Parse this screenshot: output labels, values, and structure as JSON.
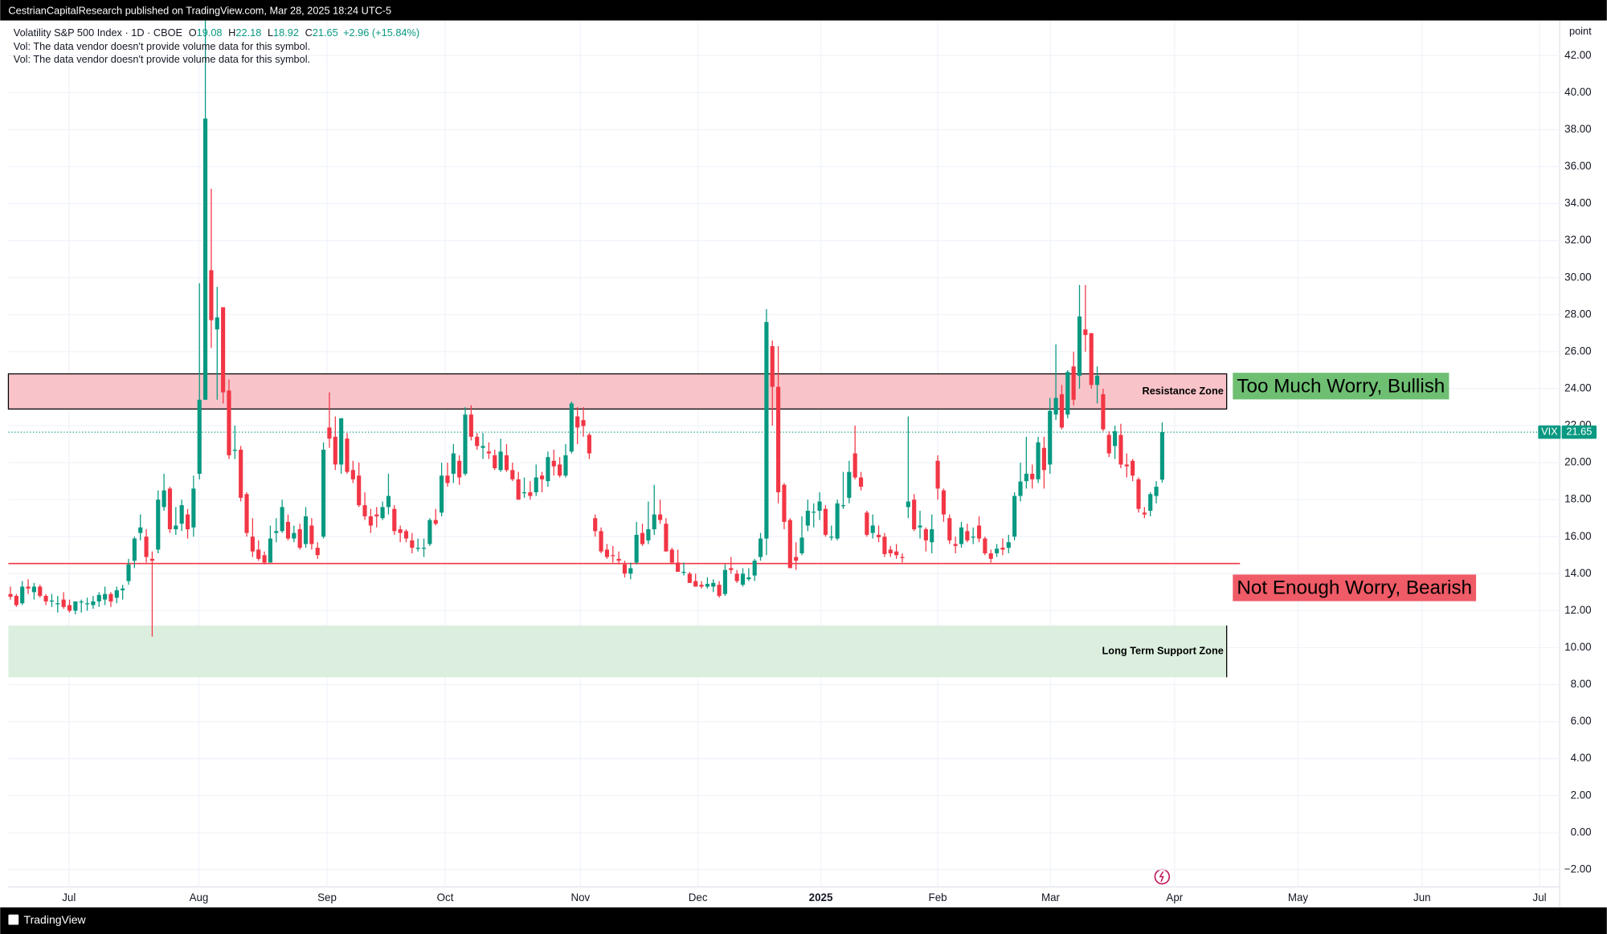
{
  "header": {
    "published": "CestrianCapitalResearch published on TradingView.com, Mar 28, 2025 18:24 UTC-5",
    "symbol": "Volatility S&P 500 Index · 1D · CBOE",
    "ohlc_labels": [
      "O",
      "H",
      "L",
      "C"
    ],
    "ohlc_values": [
      "19.08",
      "22.18",
      "18.92",
      "21.65"
    ],
    "change": "+2.96 (+15.84%)",
    "notes": [
      "Vol: The data vendor doesn't provide volume data for this symbol.",
      "Vol: The data vendor doesn't provide volume data for this symbol."
    ]
  },
  "footer": {
    "brand": "TradingView"
  },
  "chart_data": {
    "type": "candlestick",
    "y_unit": "point",
    "up_color": "#089981",
    "down_color": "#f23645",
    "grid": true,
    "ylim": [
      -2.93,
      43.9
    ],
    "yticks": [
      {
        "value": -2,
        "label": "−2.00"
      },
      {
        "value": 0,
        "label": "0.00"
      },
      {
        "value": 2,
        "label": "2.00"
      },
      {
        "value": 4,
        "label": "4.00"
      },
      {
        "value": 6,
        "label": "6.00"
      },
      {
        "value": 8,
        "label": "8.00"
      },
      {
        "value": 10,
        "label": "10.00"
      },
      {
        "value": 12,
        "label": "12.00"
      },
      {
        "value": 14,
        "label": "14.00"
      },
      {
        "value": 16,
        "label": "16.00"
      },
      {
        "value": 18,
        "label": "18.00"
      },
      {
        "value": 20,
        "label": "20.00"
      },
      {
        "value": 22,
        "label": "22.00"
      },
      {
        "value": 24,
        "label": "24.00"
      },
      {
        "value": 26,
        "label": "26.00"
      },
      {
        "value": 28,
        "label": "28.00"
      },
      {
        "value": 30,
        "label": "30.00"
      },
      {
        "value": 32,
        "label": "32.00"
      },
      {
        "value": 34,
        "label": "34.00"
      },
      {
        "value": 36,
        "label": "36.00"
      },
      {
        "value": 38,
        "label": "38.00"
      },
      {
        "value": 40,
        "label": "40.00"
      },
      {
        "value": 42,
        "label": "42.00"
      }
    ],
    "xlim": [
      -0.35,
      262.3
    ],
    "xticks": [
      {
        "value": 9.9,
        "label": "Jul"
      },
      {
        "value": 31.9,
        "label": "Aug"
      },
      {
        "value": 53.6,
        "label": "Sep"
      },
      {
        "value": 73.6,
        "label": "Oct"
      },
      {
        "value": 96.5,
        "label": "Nov"
      },
      {
        "value": 116.4,
        "label": "Dec"
      },
      {
        "value": 137.2,
        "label": "2025"
      },
      {
        "value": 157,
        "label": "Feb"
      },
      {
        "value": 176.1,
        "label": "Mar"
      },
      {
        "value": 197.1,
        "label": "Apr"
      },
      {
        "value": 218,
        "label": "May"
      },
      {
        "value": 239,
        "label": "Jun"
      },
      {
        "value": 258.9,
        "label": "Jul"
      }
    ],
    "candles": [
      [
        12.9,
        13.3,
        12.6,
        12.75
      ],
      [
        12.8,
        12.9,
        12.2,
        12.3
      ],
      [
        12.4,
        13.6,
        12.3,
        13.3
      ],
      [
        13.3,
        13.7,
        12.9,
        13.2
      ],
      [
        13,
        13.5,
        12.6,
        13.3
      ],
      [
        13.3,
        13.4,
        12.7,
        12.8
      ],
      [
        12.8,
        12.9,
        12.3,
        12.5
      ],
      [
        12.5,
        12.9,
        12.2,
        12.55
      ],
      [
        12.4,
        12.8,
        11.9,
        12.4
      ],
      [
        12.6,
        13,
        12.1,
        12.2
      ],
      [
        12.3,
        12.6,
        11.9,
        12
      ],
      [
        12,
        12.5,
        11.8,
        12.5
      ],
      [
        12.5,
        12.6,
        11.9,
        12.5
      ],
      [
        12.4,
        12.7,
        12,
        12.4
      ],
      [
        12.3,
        12.8,
        12.1,
        12.5
      ],
      [
        12.5,
        13,
        12.2,
        12.85
      ],
      [
        12.6,
        13.3,
        12.3,
        12.9
      ],
      [
        12.9,
        13,
        12.2,
        12.5
      ],
      [
        12.7,
        13.3,
        12.4,
        13.1
      ],
      [
        13.1,
        13.4,
        12.6,
        13.2
      ],
      [
        13.6,
        14.8,
        13.4,
        14.5
      ],
      [
        14.7,
        16,
        14.3,
        15.9
      ],
      [
        16.2,
        17.2,
        15.8,
        16.5
      ],
      [
        16,
        16.4,
        14.6,
        14.9
      ],
      [
        14.8,
        15.2,
        10.6,
        14.7
      ],
      [
        15.3,
        18.5,
        15.1,
        18
      ],
      [
        17.6,
        19.4,
        17.4,
        18.5
      ],
      [
        18.6,
        18.7,
        16.2,
        16.4
      ],
      [
        16.4,
        17.6,
        16.1,
        16.6
      ],
      [
        16.7,
        18,
        16.3,
        17.7
      ],
      [
        17.2,
        17.5,
        15.9,
        16.4
      ],
      [
        16.5,
        19.3,
        16,
        18.6
      ],
      [
        19.4,
        29.7,
        19.1,
        23.4
      ],
      [
        23.4,
        65.7,
        23.4,
        38.6
      ],
      [
        30.4,
        34.8,
        26.2,
        27.7
      ],
      [
        27.2,
        29.5,
        23.4,
        27.85
      ],
      [
        28.4,
        28.4,
        23.2,
        23.8
      ],
      [
        23.9,
        24.5,
        20.2,
        20.4
      ],
      [
        20.7,
        22,
        20.2,
        20.7
      ],
      [
        20.7,
        20.9,
        17.9,
        18.1
      ],
      [
        18.3,
        18.4,
        16,
        16.2
      ],
      [
        16,
        17,
        14.9,
        15.2
      ],
      [
        15.3,
        15.8,
        14.7,
        14.8
      ],
      [
        15,
        15.2,
        14.5,
        14.6
      ],
      [
        14.6,
        16.6,
        14.6,
        15.9
      ],
      [
        16.2,
        17,
        15.7,
        16.3
      ],
      [
        16.3,
        18,
        16.2,
        17.6
      ],
      [
        16.8,
        17.2,
        15.8,
        15.9
      ],
      [
        15.9,
        16.6,
        15.7,
        16.2
      ],
      [
        16.4,
        16.7,
        15.3,
        15.4
      ],
      [
        15.6,
        17.6,
        15.4,
        17.1
      ],
      [
        16.6,
        17,
        15.3,
        15.6
      ],
      [
        15.4,
        15.7,
        14.8,
        15
      ],
      [
        16,
        21.1,
        15.9,
        20.7
      ],
      [
        21.9,
        23.8,
        20.8,
        21.3
      ],
      [
        21.4,
        22.5,
        19.6,
        19.9
      ],
      [
        19.9,
        22.4,
        19.4,
        22.4
      ],
      [
        21.3,
        21.6,
        19.4,
        19.5
      ],
      [
        19.6,
        20.1,
        18.9,
        19.1
      ],
      [
        19.3,
        20,
        17.6,
        17.7
      ],
      [
        17.7,
        18.4,
        16.9,
        17.1
      ],
      [
        17.1,
        17.5,
        16.2,
        16.6
      ],
      [
        17.2,
        17.6,
        16.5,
        17.1
      ],
      [
        17,
        17.9,
        16.9,
        17.6
      ],
      [
        17.6,
        19.4,
        17.2,
        18.2
      ],
      [
        17.5,
        17.7,
        16.1,
        16.3
      ],
      [
        16.4,
        16.6,
        15.7,
        16.2
      ],
      [
        16.3,
        16.4,
        15.7,
        15.9
      ],
      [
        15.8,
        16.2,
        15.1,
        15.4
      ],
      [
        15.4,
        15.9,
        15.2,
        15.4
      ],
      [
        15.4,
        15.9,
        14.9,
        15.4
      ],
      [
        15.6,
        17,
        15.5,
        16.9
      ],
      [
        16.9,
        17.5,
        16.6,
        16.7
      ],
      [
        17.3,
        20,
        17.1,
        19.3
      ],
      [
        19.3,
        20,
        18.7,
        18.9
      ],
      [
        19.4,
        21,
        18.9,
        20.5
      ],
      [
        20.1,
        20.4,
        18.8,
        19.2
      ],
      [
        19.4,
        23,
        19.3,
        22.6
      ],
      [
        22.6,
        23.1,
        21.2,
        21.4
      ],
      [
        21.4,
        21.6,
        20.7,
        20.9
      ],
      [
        20.8,
        21.6,
        20.2,
        20.9
      ],
      [
        20.6,
        21.1,
        20.2,
        20.5
      ],
      [
        20.4,
        20.7,
        19.6,
        19.7
      ],
      [
        19.6,
        21.3,
        19.5,
        20.6
      ],
      [
        20.4,
        21,
        19.5,
        19.6
      ],
      [
        19.6,
        20,
        19,
        19.1
      ],
      [
        19.1,
        19.5,
        18,
        18
      ],
      [
        18.4,
        19.2,
        18.1,
        18.4
      ],
      [
        18.4,
        19,
        18,
        18.2
      ],
      [
        18.4,
        19.9,
        18.2,
        19.2
      ],
      [
        19.3,
        19.5,
        18.4,
        19.1
      ],
      [
        19,
        20.6,
        18.7,
        20.3
      ],
      [
        20.1,
        20.7,
        19.3,
        19.8
      ],
      [
        19.9,
        20.3,
        19.2,
        19.3
      ],
      [
        19.3,
        21,
        19.2,
        20.4
      ],
      [
        20.6,
        23.3,
        20.5,
        23.2
      ],
      [
        22.5,
        23,
        21,
        21.9
      ],
      [
        22.3,
        23,
        21.4,
        21.98
      ],
      [
        21.5,
        21.6,
        20.2,
        20.5
      ],
      [
        17,
        17.2,
        16,
        16.3
      ],
      [
        16.3,
        16.5,
        15.1,
        15.2
      ],
      [
        15.3,
        15.6,
        14.8,
        14.9
      ],
      [
        15,
        15.5,
        14.6,
        14.97
      ],
      [
        14.8,
        15.2,
        14.5,
        14.7
      ],
      [
        14.5,
        14.7,
        13.8,
        14
      ],
      [
        14,
        14.6,
        13.7,
        14.3
      ],
      [
        14.6,
        16.8,
        14.5,
        16.1
      ],
      [
        16.2,
        16.7,
        15.5,
        15.6
      ],
      [
        15.8,
        17.9,
        15.6,
        16.4
      ],
      [
        16.4,
        18.8,
        16.1,
        17.2
      ],
      [
        17.2,
        18,
        16.7,
        16.9
      ],
      [
        16.7,
        17,
        15.2,
        15.2
      ],
      [
        15.3,
        15.4,
        14.5,
        14.6
      ],
      [
        14.6,
        15.3,
        14.1,
        14.1
      ],
      [
        14.1,
        14.6,
        13.9,
        14.1
      ],
      [
        14,
        14.1,
        13.5,
        13.5
      ],
      [
        13.6,
        14,
        13.3,
        13.3
      ],
      [
        13.4,
        13.6,
        13.2,
        13.3
      ],
      [
        13.3,
        13.8,
        13.2,
        13.45
      ],
      [
        13.3,
        13.7,
        13,
        13.5
      ],
      [
        13.4,
        13.6,
        12.7,
        12.8
      ],
      [
        12.9,
        14.5,
        12.8,
        14.2
      ],
      [
        14.3,
        14.9,
        14,
        14.2
      ],
      [
        14,
        14.2,
        13.5,
        13.6
      ],
      [
        13.4,
        14.3,
        13.3,
        14
      ],
      [
        13.7,
        14.3,
        13.6,
        13.8
      ],
      [
        13.9,
        14.8,
        13.6,
        14.7
      ],
      [
        14.9,
        16.2,
        14.7,
        15.9
      ],
      [
        15.9,
        28.3,
        15,
        27.6
      ],
      [
        26.3,
        26.6,
        22,
        24.1
      ],
      [
        24.1,
        26.3,
        17.8,
        18.4
      ],
      [
        18.8,
        18.9,
        16.4,
        16.8
      ],
      [
        16.9,
        17,
        14.3,
        14.3
      ],
      [
        14.9,
        15.7,
        14.2,
        14.7
      ],
      [
        15.1,
        17.1,
        15,
        15.95
      ],
      [
        16.6,
        18,
        16.3,
        17.4
      ],
      [
        17.3,
        17.8,
        16.5,
        17.35
      ],
      [
        17.4,
        18.4,
        16.9,
        17.9
      ],
      [
        17.5,
        17.7,
        16,
        16.1
      ],
      [
        16,
        16.6,
        15.8,
        16
      ],
      [
        15.9,
        18,
        15.8,
        17.8
      ],
      [
        17.7,
        19.5,
        17.5,
        17.7
      ],
      [
        18.1,
        20.1,
        17.8,
        19.5
      ],
      [
        20.5,
        22,
        19.1,
        19.2
      ],
      [
        19.2,
        19.5,
        18.5,
        18.7
      ],
      [
        17.3,
        17.4,
        16,
        16.1
      ],
      [
        16.2,
        17.2,
        15.9,
        16.6
      ],
      [
        16.1,
        16.6,
        15.7,
        15.97
      ],
      [
        16,
        16.2,
        14.9,
        15.06
      ],
      [
        15.3,
        15.5,
        14.9,
        15.1
      ],
      [
        15.2,
        15.6,
        14.8,
        15
      ],
      [
        14.9,
        15.1,
        14.6,
        14.85
      ],
      [
        17.6,
        22.5,
        17,
        17.9
      ],
      [
        18,
        18.3,
        16.3,
        16.4
      ],
      [
        16.5,
        17.4,
        15.9,
        16.6
      ],
      [
        16.4,
        16.5,
        15.2,
        15.8
      ],
      [
        15.7,
        17.2,
        15.1,
        16.4
      ],
      [
        20.1,
        20.4,
        18,
        18.6
      ],
      [
        18.5,
        18.6,
        16.8,
        17.2
      ],
      [
        17,
        17.2,
        15.6,
        15.8
      ],
      [
        15.6,
        16,
        15.1,
        15.5
      ],
      [
        15.6,
        16.8,
        15.4,
        16.5
      ],
      [
        16.3,
        16.7,
        15.7,
        15.8
      ],
      [
        16,
        16.5,
        15.6,
        16
      ],
      [
        16.6,
        17.1,
        15.7,
        15.9
      ],
      [
        15.9,
        16,
        15,
        15.1
      ],
      [
        15.1,
        15.3,
        14.6,
        14.8
      ],
      [
        15.1,
        15.6,
        14.9,
        15.35
      ],
      [
        15.4,
        15.9,
        15,
        15.3
      ],
      [
        15.4,
        16.1,
        15.1,
        15.7
      ],
      [
        16,
        18.4,
        15.8,
        18.2
      ],
      [
        18.2,
        20,
        17.9,
        18.98
      ],
      [
        19,
        21.4,
        18.6,
        19.4
      ],
      [
        19.4,
        19.9,
        18.6,
        19.1
      ],
      [
        19.1,
        21.4,
        18.9,
        21.1
      ],
      [
        20.8,
        21.4,
        18.6,
        19.6
      ],
      [
        19.9,
        23.5,
        19.4,
        22.8
      ],
      [
        22.6,
        26.4,
        22.3,
        23.5
      ],
      [
        23.7,
        24.2,
        21.8,
        21.9
      ],
      [
        22.6,
        25,
        22.4,
        24.9
      ],
      [
        25.2,
        26,
        23.1,
        23.4
      ],
      [
        24.7,
        29.6,
        24,
        27.9
      ],
      [
        27.2,
        29.6,
        26,
        26.9
      ],
      [
        27,
        27,
        24,
        24.2
      ],
      [
        24.2,
        25.2,
        23.2,
        24.7
      ],
      [
        23.7,
        24,
        21.7,
        21.8
      ],
      [
        21.5,
        21.7,
        20.3,
        20.5
      ],
      [
        20.9,
        22,
        20.2,
        21.7
      ],
      [
        21.5,
        22.1,
        19.7,
        19.9
      ],
      [
        19.9,
        20.5,
        19.2,
        19.8
      ],
      [
        20.1,
        20.2,
        19,
        19.3
      ],
      [
        19.1,
        19.2,
        17.3,
        17.5
      ],
      [
        17.3,
        17.6,
        17,
        17.2
      ],
      [
        17.4,
        18.4,
        17.1,
        18.3
      ],
      [
        18.2,
        19,
        17.8,
        18.7
      ],
      [
        19.08,
        22.18,
        18.92,
        21.65
      ]
    ],
    "last_price": {
      "name": "VIX",
      "value": 21.65,
      "color": "#089981"
    },
    "resistance_zone": {
      "label": "Resistance Zone",
      "range": [
        22.9,
        24.8
      ],
      "color": "#f8c4c9"
    },
    "support_zone": {
      "label": "Long Term Support Zone",
      "range": [
        8.4,
        11.2
      ],
      "color": "#dcefdf"
    },
    "support_line": {
      "value": 14.55,
      "color": "#f23645"
    },
    "annotations": [
      {
        "text": "Too Much Worry, Bullish",
        "color": "#6fbf73"
      },
      {
        "text": "Not Enough Worry, Bearish",
        "color": "#ef5b66"
      }
    ]
  }
}
